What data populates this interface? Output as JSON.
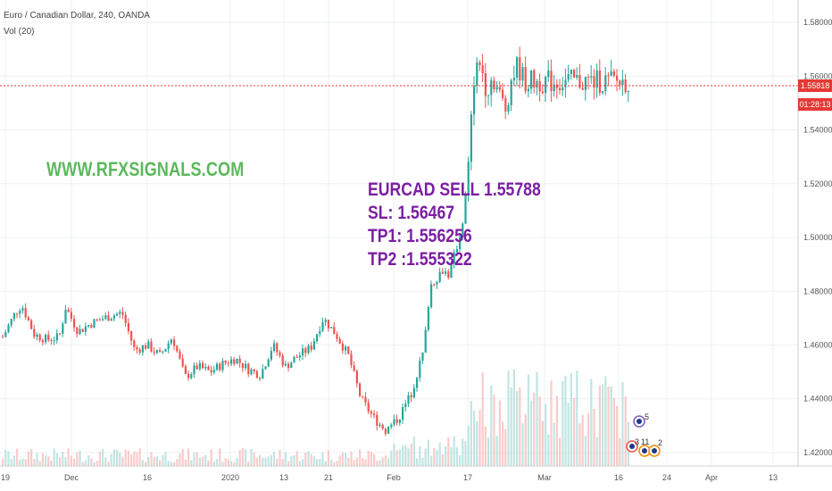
{
  "header": {
    "title": "Euro / Canadian Dollar, 240, OANDA",
    "volume_label": "Vol (20)"
  },
  "watermark": "WWW.RFXSIGNALS.COM",
  "signal": {
    "line1": "EURCAD SELL 1.55788",
    "line2": "SL: 1.56467",
    "line3": "TP1: 1.556256",
    "line4": "TP2 :1.555322"
  },
  "price_axis": {
    "ticks": [
      "1.58000",
      "1.56000",
      "1.54000",
      "1.52000",
      "1.50000",
      "1.48000",
      "1.46000",
      "1.44000",
      "1.42000"
    ],
    "last_price": "1.55818",
    "countdown": "01:28:13"
  },
  "events": {
    "a": "5",
    "b": "3",
    "c": "11",
    "d": "2"
  },
  "colors": {
    "up": "#26a69a",
    "down": "#ef5350",
    "watermark": "#5cb85c",
    "signal": "#7b1fa2",
    "last_price_line": "#e53935"
  },
  "chart_data": {
    "type": "candlestick",
    "symbol": "EURCAD",
    "interval": "240",
    "x_ticks": [
      "19",
      "Dec",
      "16",
      "2020",
      "13",
      "21",
      "Feb",
      "17",
      "Mar",
      "16",
      "24",
      "Apr",
      "13"
    ],
    "ylim": [
      1.417,
      1.585
    ],
    "grid": true,
    "last_price": 1.55818,
    "path": [
      {
        "t": 0.0,
        "p": 1.463
      },
      {
        "t": 0.02,
        "p": 1.472
      },
      {
        "t": 0.03,
        "p": 1.475
      },
      {
        "t": 0.05,
        "p": 1.464
      },
      {
        "t": 0.07,
        "p": 1.462
      },
      {
        "t": 0.09,
        "p": 1.463
      },
      {
        "t": 0.1,
        "p": 1.474
      },
      {
        "t": 0.12,
        "p": 1.465
      },
      {
        "t": 0.14,
        "p": 1.468
      },
      {
        "t": 0.16,
        "p": 1.47
      },
      {
        "t": 0.19,
        "p": 1.472
      },
      {
        "t": 0.21,
        "p": 1.458
      },
      {
        "t": 0.23,
        "p": 1.46
      },
      {
        "t": 0.25,
        "p": 1.456
      },
      {
        "t": 0.27,
        "p": 1.463
      },
      {
        "t": 0.29,
        "p": 1.448
      },
      {
        "t": 0.31,
        "p": 1.452
      },
      {
        "t": 0.33,
        "p": 1.45
      },
      {
        "t": 0.35,
        "p": 1.453
      },
      {
        "t": 0.37,
        "p": 1.455
      },
      {
        "t": 0.39,
        "p": 1.451
      },
      {
        "t": 0.41,
        "p": 1.449
      },
      {
        "t": 0.43,
        "p": 1.46
      },
      {
        "t": 0.45,
        "p": 1.452
      },
      {
        "t": 0.47,
        "p": 1.456
      },
      {
        "t": 0.49,
        "p": 1.459
      },
      {
        "t": 0.51,
        "p": 1.47
      },
      {
        "t": 0.53,
        "p": 1.464
      },
      {
        "t": 0.55,
        "p": 1.456
      },
      {
        "t": 0.57,
        "p": 1.44
      },
      {
        "t": 0.59,
        "p": 1.433
      },
      {
        "t": 0.61,
        "p": 1.428
      },
      {
        "t": 0.63,
        "p": 1.433
      },
      {
        "t": 0.65,
        "p": 1.442
      },
      {
        "t": 0.67,
        "p": 1.458
      },
      {
        "t": 0.68,
        "p": 1.482
      },
      {
        "t": 0.7,
        "p": 1.488
      },
      {
        "t": 0.71,
        "p": 1.486
      },
      {
        "t": 0.73,
        "p": 1.503
      },
      {
        "t": 0.74,
        "p": 1.522
      },
      {
        "t": 0.75,
        "p": 1.56
      },
      {
        "t": 0.76,
        "p": 1.565
      },
      {
        "t": 0.77,
        "p": 1.555
      },
      {
        "t": 0.78,
        "p": 1.56
      },
      {
        "t": 0.79,
        "p": 1.553
      },
      {
        "t": 0.8,
        "p": 1.548
      },
      {
        "t": 0.81,
        "p": 1.56
      },
      {
        "t": 0.82,
        "p": 1.564
      },
      {
        "t": 0.83,
        "p": 1.558
      }
    ]
  }
}
